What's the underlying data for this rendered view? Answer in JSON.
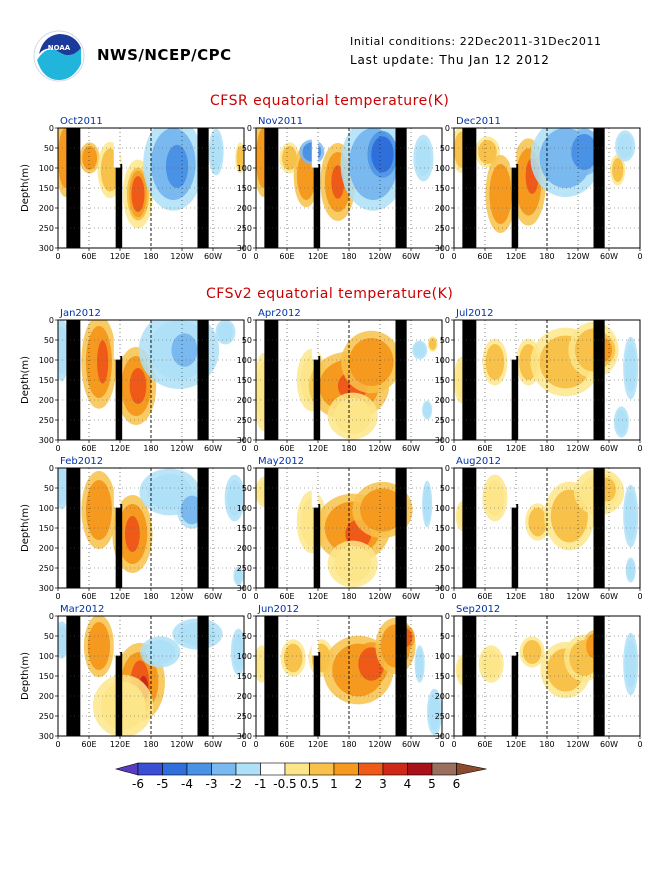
{
  "header": {
    "org": "NWS/NCEP/CPC",
    "initial_conditions": "Initial conditions: 22Dec2011-31Dec2011",
    "last_update": "Last update: Thu Jan 12 2012",
    "logo_text": "NOAA"
  },
  "sections": {
    "cfsr_title": "CFSR  equatorial  temperature(K)",
    "cfsv2_title": "CFSv2  equatorial  temperature(K)"
  },
  "axes": {
    "ylabel": "Depth(m)",
    "yticks": [
      "0",
      "50",
      "100",
      "150",
      "200",
      "250",
      "300"
    ],
    "xticks": [
      "0",
      "60E",
      "120E",
      "180",
      "120W",
      "60W",
      "0"
    ]
  },
  "panel_titles": [
    "Oct2011",
    "Nov2011",
    "Dec2011",
    "Jan2012",
    "Apr2012",
    "Jul2012",
    "Feb2012",
    "May2012",
    "Aug2012",
    "Mar2012",
    "Jun2012",
    "Sep2012"
  ],
  "colorbar": {
    "labels": [
      "-6",
      "-5",
      "-4",
      "-3",
      "-2",
      "-1",
      "-0.5",
      "0.5",
      "1",
      "2",
      "3",
      "4",
      "5",
      "6"
    ],
    "colors": [
      "#5a3cc0",
      "#3a4fd6",
      "#2f6fdc",
      "#4a92e6",
      "#7ab8f0",
      "#aee0f8",
      "#ffffff",
      "#fde68a",
      "#f8c24a",
      "#f59a1e",
      "#ef5a18",
      "#d02818",
      "#a8101a",
      "#9c6e5e",
      "#8b4a2e"
    ]
  },
  "chart_data": [
    {
      "panel": "Oct2011",
      "type": "heatmap",
      "model": "CFSR",
      "xlabel_ticks": [
        "0",
        "60E",
        "120E",
        "180",
        "120W",
        "60W",
        "0"
      ],
      "ylim": [
        0,
        300
      ],
      "value_range_K": [
        -3,
        3
      ]
    },
    {
      "panel": "Nov2011",
      "type": "heatmap",
      "model": "CFSR",
      "ylim": [
        0,
        300
      ],
      "value_range_K": [
        -4,
        3
      ]
    },
    {
      "panel": "Dec2011",
      "type": "heatmap",
      "model": "CFSR",
      "ylim": [
        0,
        300
      ],
      "value_range_K": [
        -3,
        3
      ]
    },
    {
      "panel": "Jan2012",
      "type": "heatmap",
      "model": "CFSv2",
      "ylim": [
        0,
        300
      ],
      "value_range_K": [
        -2,
        3
      ]
    },
    {
      "panel": "Apr2012",
      "type": "heatmap",
      "model": "CFSv2",
      "ylim": [
        0,
        300
      ],
      "value_range_K": [
        -1,
        3
      ]
    },
    {
      "panel": "Jul2012",
      "type": "heatmap",
      "model": "CFSv2",
      "ylim": [
        0,
        300
      ],
      "value_range_K": [
        -1,
        2
      ]
    },
    {
      "panel": "Feb2012",
      "type": "heatmap",
      "model": "CFSv2",
      "ylim": [
        0,
        300
      ],
      "value_range_K": [
        -2,
        3
      ]
    },
    {
      "panel": "May2012",
      "type": "heatmap",
      "model": "CFSv2",
      "ylim": [
        0,
        300
      ],
      "value_range_K": [
        -1,
        3
      ]
    },
    {
      "panel": "Aug2012",
      "type": "heatmap",
      "model": "CFSv2",
      "ylim": [
        0,
        300
      ],
      "value_range_K": [
        -1,
        2
      ]
    },
    {
      "panel": "Mar2012",
      "type": "heatmap",
      "model": "CFSv2",
      "ylim": [
        0,
        300
      ],
      "value_range_K": [
        -1,
        4
      ]
    },
    {
      "panel": "Jun2012",
      "type": "heatmap",
      "model": "CFSv2",
      "ylim": [
        0,
        300
      ],
      "value_range_K": [
        -1,
        3
      ]
    },
    {
      "panel": "Sep2012",
      "type": "heatmap",
      "model": "CFSv2",
      "ylim": [
        0,
        300
      ],
      "value_range_K": [
        -1,
        2
      ]
    }
  ]
}
